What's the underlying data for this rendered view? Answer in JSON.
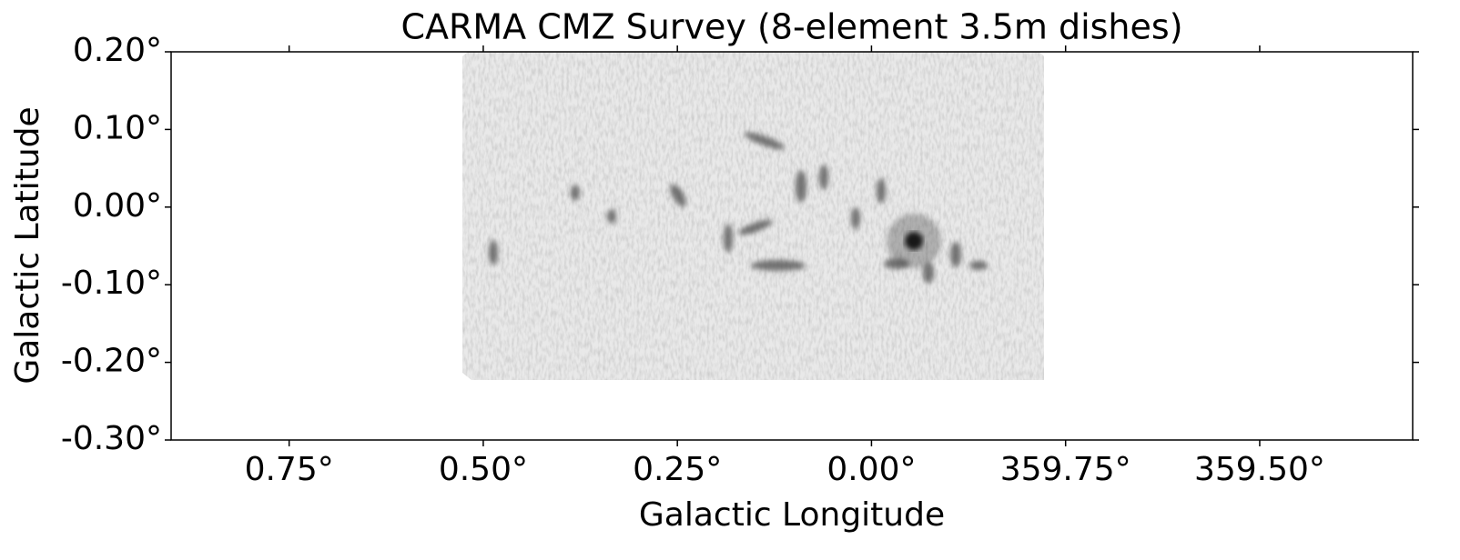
{
  "chart_data": {
    "type": "image",
    "title": "CARMA CMZ Survey (8-element 3.5m dishes)",
    "x_label": "Galactic Longitude",
    "y_label": "Galactic Latitude",
    "xlim": [
      0.902,
      359.303
    ],
    "ylim": [
      -0.3,
      0.2
    ],
    "xticks": [
      {
        "value": 0.75,
        "label": "0.75°"
      },
      {
        "value": 0.5,
        "label": "0.50°"
      },
      {
        "value": 0.25,
        "label": "0.25°"
      },
      {
        "value": 0,
        "label": "0.00°"
      },
      {
        "value": 359.75,
        "label": "359.75°"
      },
      {
        "value": 359.5,
        "label": "359.50°"
      }
    ],
    "yticks": [
      {
        "value": 0.2,
        "label": "0.20°"
      },
      {
        "value": 0.1,
        "label": "0.10°"
      },
      {
        "value": 0,
        "label": "0.00°"
      },
      {
        "value": -0.1,
        "label": "-0.10°"
      },
      {
        "value": -0.2,
        "label": "-0.20°"
      },
      {
        "value": -0.3,
        "label": "-0.30°"
      }
    ],
    "colormap": "gray_r"
  }
}
